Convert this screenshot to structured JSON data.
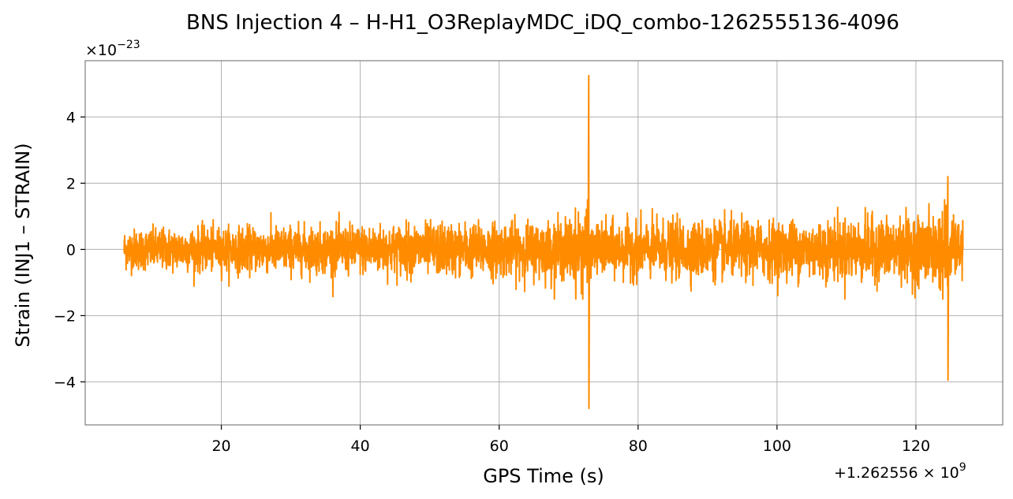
{
  "chart_data": {
    "type": "line",
    "title": "BNS Injection 4 – H-H1_O3ReplayMDC_iDQ_combo-1262555136-4096",
    "xlabel": "GPS Time (s)",
    "ylabel": "Strain (INJ1 – STRAIN)",
    "y_multiplier_label": "×10",
    "y_multiplier_exponent": "−23",
    "x_offset_label": "+1.262556 × 10",
    "x_offset_exponent": "9",
    "xlim": [
      0.4,
      132.5
    ],
    "ylim": [
      -5.3,
      5.7
    ],
    "xticks": [
      20,
      40,
      60,
      80,
      100,
      120
    ],
    "xtick_labels": [
      "20",
      "40",
      "60",
      "80",
      "100",
      "120"
    ],
    "yticks": [
      -4,
      -2,
      0,
      2,
      4
    ],
    "ytick_labels": [
      "−4",
      "−2",
      "0",
      "2",
      "4"
    ],
    "grid": true,
    "series": [
      {
        "color": "#ff8c00",
        "x_start": 6.0,
        "x_end": 126.8,
        "peaks": [
          {
            "x": 72.9,
            "max": 5.25,
            "min": -4.8
          },
          {
            "x": 124.6,
            "max": 2.2,
            "min": -3.95
          }
        ]
      }
    ]
  }
}
